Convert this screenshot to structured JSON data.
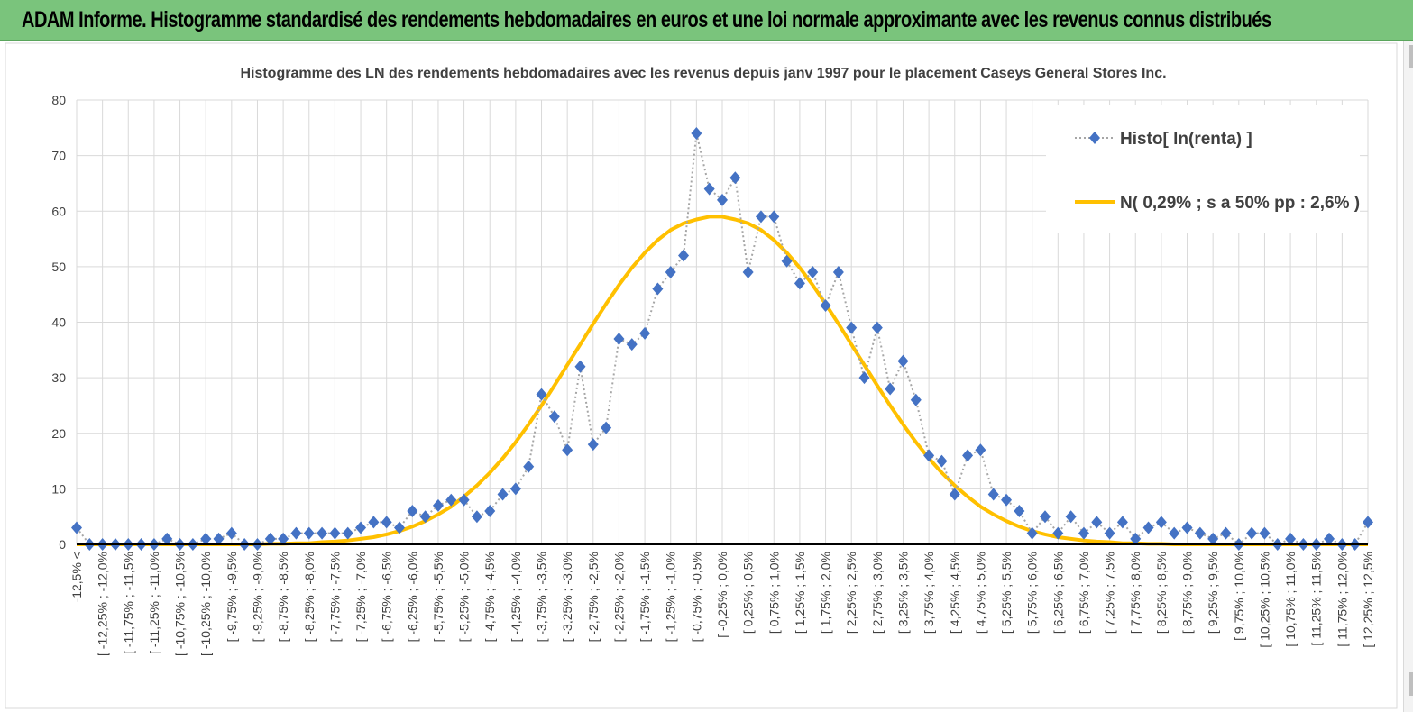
{
  "banner": {
    "text": "ADAM Informe. Histogramme standardisé des rendements hebdomadaires en euros et une loi normale approximante avec les revenus connus distribués"
  },
  "colors": {
    "banner_bg": "#7ac47c",
    "histo_marker": "#4472c4",
    "histo_line": "#a6a6a6",
    "normal_line": "#ffc000",
    "axis": "#000000",
    "grid": "#d9d9d9"
  },
  "chart_data": {
    "type": "line",
    "title": "Histogramme  des LN des rendements hebdomadaires avec les revenus depuis janv 1997 pour le placement Caseys General Stores Inc.",
    "xlabel": "",
    "ylabel": "",
    "ylim": [
      0,
      80
    ],
    "yticks": [
      0,
      10,
      20,
      30,
      40,
      50,
      60,
      70,
      80
    ],
    "grid": true,
    "legend_position": "top-right",
    "categories": [
      "-12,5% <",
      "[ -12,25% ; -12,0%",
      "[ -11,75% ; -11,5%",
      "[ -11,25% ; -11,0%",
      "[ -10,75% ; -10,5%",
      "[ -10,25% ; -10,0%",
      "[ -9,75% ; -9,5%",
      "[ -9,25% ; -9,0%",
      "[ -8,75% ; -8,5%",
      "[ -8,25% ; -8,0%",
      "[ -7,75% ; -7,5%",
      "[ -7,25% ; -7,0%",
      "[ -6,75% ; -6,5%",
      "[ -6,25% ; -6,0%",
      "[ -5,75% ; -5,5%",
      "[ -5,25% ; -5,0%",
      "[ -4,75% ; -4,5%",
      "[ -4,25% ; -4,0%",
      "[ -3,75% ; -3,5%",
      "[ -3,25% ; -3,0%",
      "[ -2,75% ; -2,5%",
      "[ -2,25% ; -2,0%",
      "[ -1,75% ; -1,5%",
      "[ -1,25% ; -1,0%",
      "[ -0,75% ; -0,5%",
      "[ -0,25% ; 0,0%",
      "[ 0,25% ; 0,5%",
      "[ 0,75% ; 1,0%",
      "[ 1,25% ; 1,5%",
      "[ 1,75% ; 2,0%",
      "[ 2,25% ; 2,5%",
      "[ 2,75% ; 3,0%",
      "[ 3,25% ; 3,5%",
      "[ 3,75% ; 4,0%",
      "[ 4,25% ; 4,5%",
      "[ 4,75% ; 5,0%",
      "[ 5,25% ; 5,5%",
      "[ 5,75% ; 6,0%",
      "[ 6,25% ; 6,5%",
      "[ 6,75% ; 7,0%",
      "[ 7,25% ; 7,5%",
      "[ 7,75% ; 8,0%",
      "[ 8,25% ; 8,5%",
      "[ 8,75% ; 9,0%",
      "[ 9,25% ; 9,5%",
      "[ 9,75% ; 10,0%",
      "[ 10,25% ; 10,5%",
      "[ 10,75% ; 11,0%",
      "[ 11,25% ; 11,5%",
      "[ 11,75% ; 12,0%",
      "[ 12,25% ; 12,5%"
    ],
    "x": [
      -12.5,
      -12.25,
      -12.0,
      -11.75,
      -11.5,
      -11.25,
      -11.0,
      -10.75,
      -10.5,
      -10.25,
      -10.0,
      -9.75,
      -9.5,
      -9.25,
      -9.0,
      -8.75,
      -8.5,
      -8.25,
      -8.0,
      -7.75,
      -7.5,
      -7.25,
      -7.0,
      -6.75,
      -6.5,
      -6.25,
      -6.0,
      -5.75,
      -5.5,
      -5.25,
      -5.0,
      -4.75,
      -4.5,
      -4.25,
      -4.0,
      -3.75,
      -3.5,
      -3.25,
      -3.0,
      -2.75,
      -2.5,
      -2.25,
      -2.0,
      -1.75,
      -1.5,
      -1.25,
      -1.0,
      -0.75,
      -0.5,
      -0.25,
      0.0,
      0.25,
      0.5,
      0.75,
      1.0,
      1.25,
      1.5,
      1.75,
      2.0,
      2.25,
      2.5,
      2.75,
      3.0,
      3.25,
      3.5,
      3.75,
      4.0,
      4.25,
      4.5,
      4.75,
      5.0,
      5.25,
      5.5,
      5.75,
      6.0,
      6.25,
      6.5,
      6.75,
      7.0,
      7.25,
      7.5,
      7.75,
      8.0,
      8.25,
      8.5,
      8.75,
      9.0,
      9.25,
      9.5,
      9.75,
      10.0,
      10.25,
      10.5,
      10.75,
      11.0,
      11.25,
      11.5,
      11.75,
      12.0,
      12.25,
      12.5
    ],
    "series": [
      {
        "name": "Histo[ ln(renta) ]",
        "style": "markers-dotted",
        "values": [
          3,
          0,
          0,
          0,
          0,
          0,
          0,
          1,
          0,
          0,
          1,
          1,
          2,
          0,
          0,
          1,
          1,
          2,
          2,
          2,
          2,
          2,
          3,
          4,
          4,
          3,
          6,
          5,
          7,
          8,
          8,
          5,
          6,
          9,
          10,
          14,
          27,
          23,
          17,
          32,
          18,
          21,
          37,
          36,
          38,
          46,
          49,
          52,
          74,
          64,
          62,
          66,
          49,
          59,
          59,
          51,
          47,
          49,
          43,
          49,
          39,
          30,
          39,
          28,
          33,
          26,
          16,
          15,
          9,
          16,
          17,
          9,
          8,
          6,
          2,
          5,
          2,
          5,
          2,
          4,
          2,
          4,
          1,
          3,
          4,
          2,
          3,
          2,
          1,
          2,
          0,
          2,
          2,
          0,
          1,
          0,
          0,
          1,
          0,
          0,
          4
        ]
      },
      {
        "name": "N( 0,29% ; s a 50% pp : 2,6% )",
        "style": "smooth-line",
        "values": [
          0.0,
          0.0,
          0.0,
          0.0,
          0.0,
          0.0,
          0.0,
          0.0,
          0.0,
          0.0,
          0.0,
          0.0,
          0.0,
          0.0,
          0.0,
          0.1,
          0.1,
          0.2,
          0.2,
          0.4,
          0.5,
          0.7,
          1.0,
          1.3,
          1.8,
          2.4,
          3.2,
          4.2,
          5.4,
          6.8,
          8.6,
          10.6,
          12.9,
          15.5,
          18.4,
          21.6,
          25.0,
          28.6,
          32.3,
          36.0,
          39.7,
          43.3,
          46.7,
          49.8,
          52.5,
          54.8,
          56.6,
          57.8,
          58.5,
          59.0,
          59.0,
          58.5,
          57.8,
          56.6,
          54.8,
          52.5,
          49.8,
          46.7,
          43.3,
          39.7,
          36.0,
          32.3,
          28.6,
          25.0,
          21.6,
          18.4,
          15.5,
          12.9,
          10.6,
          8.6,
          6.8,
          5.4,
          4.2,
          3.2,
          2.4,
          1.8,
          1.3,
          1.0,
          0.7,
          0.5,
          0.4,
          0.2,
          0.2,
          0.1,
          0.1,
          0.0,
          0.0,
          0.0,
          0.0,
          0.0,
          0.0,
          0.0,
          0.0,
          0.0,
          0.0,
          0.0,
          0.0,
          0.0,
          0.0,
          0.0,
          0.0
        ]
      }
    ]
  }
}
